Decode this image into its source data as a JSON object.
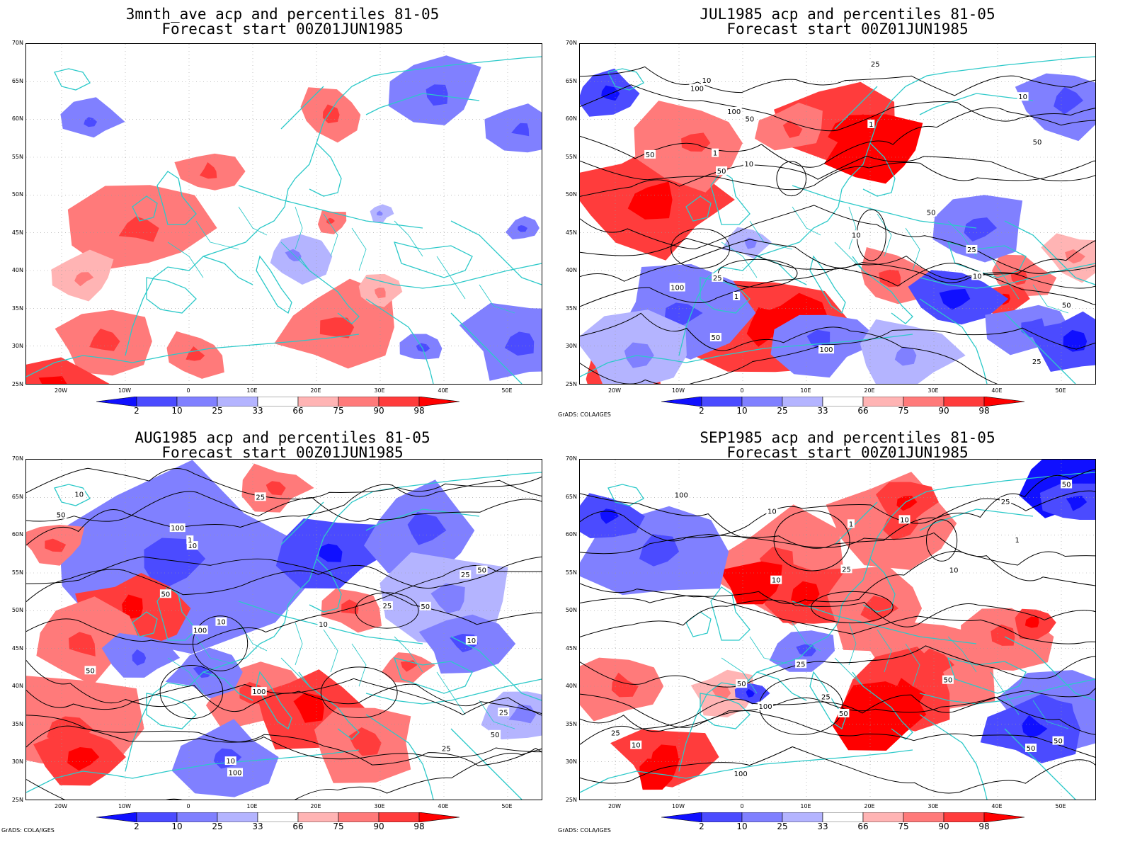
{
  "panels": [
    {
      "title_line1": "3mnth_ave acp and percentiles 81-05",
      "title_line2": "Forecast start 00Z01JUN1985",
      "credit": "",
      "contours": false,
      "contour_labels": []
    },
    {
      "title_line1": "JUL1985 acp and percentiles 81-05",
      "title_line2": "Forecast start 00Z01JUN1985",
      "credit": "GrADS: COLA/IGES",
      "contours": true,
      "contour_labels": [
        "50",
        "100",
        "50",
        "100",
        "50",
        "100",
        "50",
        "25",
        "100",
        "50",
        "10",
        "50",
        "25",
        "10",
        "10",
        "25",
        "10",
        "1",
        "1",
        "1",
        "50",
        "25",
        "10"
      ]
    },
    {
      "title_line1": "AUG1985 acp and percentiles 81-05",
      "title_line2": "Forecast start 00Z01JUN1985",
      "credit": "GrADS: COLA/IGES",
      "contours": true,
      "contour_labels": [
        "100",
        "100",
        "50",
        "100",
        "50",
        "50",
        "50",
        "25",
        "100",
        "50",
        "25",
        "25",
        "50",
        "10",
        "25",
        "10",
        "10",
        "1",
        "25",
        "10",
        "10",
        "10"
      ]
    },
    {
      "title_line1": "SEP1985 acp and percentiles 81-05",
      "title_line2": "Forecast start 00Z01JUN1985",
      "credit": "GrADS: COLA/IGES",
      "contours": true,
      "contour_labels": [
        "100",
        "50",
        "100",
        "100",
        "50",
        "50",
        "25",
        "50",
        "50",
        "10",
        "25",
        "50",
        "25",
        "10",
        "10",
        "1",
        "25",
        "10",
        "10",
        "25",
        "1"
      ]
    }
  ],
  "lat_labels": [
    "70N",
    "65N",
    "60N",
    "55N",
    "50N",
    "45N",
    "40N",
    "35N",
    "30N",
    "25N"
  ],
  "lon_labels": [
    "20W",
    "10W",
    "0",
    "10E",
    "20E",
    "30E",
    "40E",
    "50E"
  ],
  "colorbar": {
    "labels": [
      "2",
      "10",
      "25",
      "33",
      "66",
      "75",
      "90",
      "98"
    ],
    "colors": [
      "#1010ff",
      "#4b4bff",
      "#8080ff",
      "#b4b4ff",
      "#ffffff",
      "#ffb4b4",
      "#ff7a7a",
      "#ff3c3c",
      "#ff0000"
    ]
  },
  "colors": {
    "coast": "#2cc9c9",
    "contour": "#000000",
    "grid": "#999999"
  }
}
